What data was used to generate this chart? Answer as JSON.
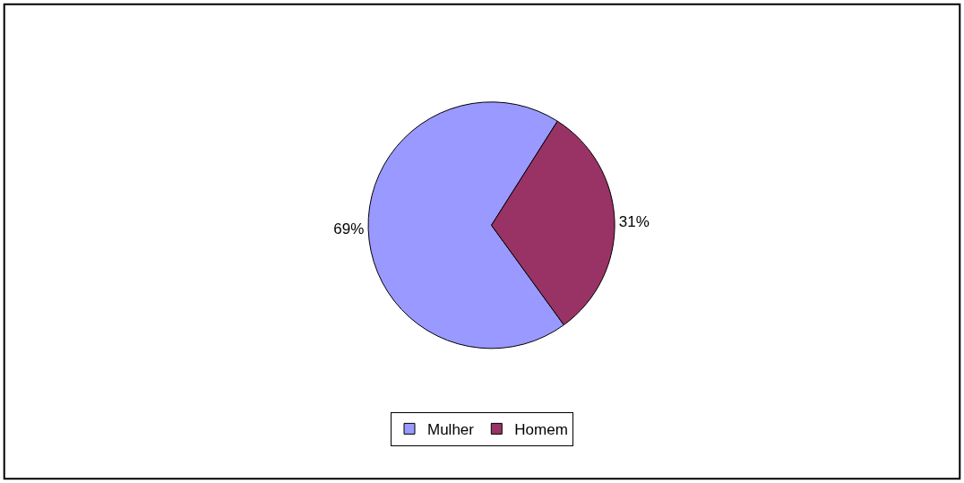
{
  "chart_data": {
    "type": "pie",
    "categories": [
      "Mulher",
      "Homem"
    ],
    "values": [
      69,
      31
    ],
    "colors": [
      "#9999ff",
      "#993366"
    ],
    "value_labels": [
      "69%",
      "31%"
    ],
    "legend": "bottom"
  }
}
